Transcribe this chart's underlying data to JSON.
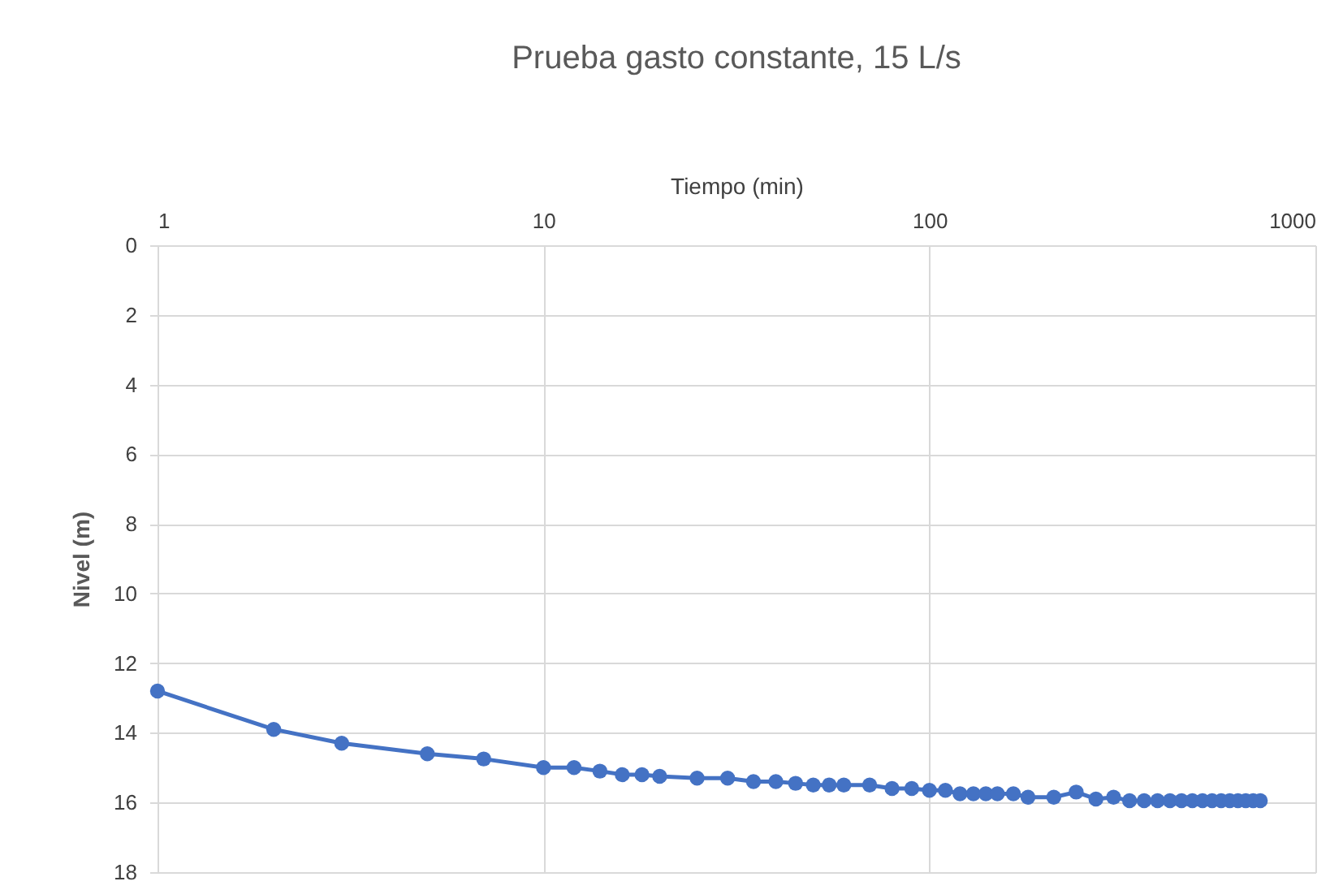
{
  "chart_data": {
    "type": "line",
    "title": "Prueba gasto constante, 15 L/s",
    "xlabel": "Tiempo (min)",
    "ylabel": "Nivel (m)",
    "x": [
      1,
      2,
      3,
      5,
      7,
      10,
      12,
      14,
      16,
      18,
      20,
      25,
      30,
      35,
      40,
      45,
      50,
      55,
      60,
      70,
      80,
      90,
      100,
      110,
      120,
      130,
      140,
      150,
      165,
      180,
      210,
      240,
      270,
      300,
      330,
      360,
      390,
      420,
      450,
      480,
      510,
      540,
      570,
      600,
      630,
      660,
      690,
      720
    ],
    "series": [
      {
        "color": "#4472c4",
        "values": [
          12.8,
          13.9,
          14.3,
          14.6,
          14.75,
          15.0,
          15.0,
          15.1,
          15.2,
          15.2,
          15.25,
          15.3,
          15.3,
          15.4,
          15.4,
          15.45,
          15.5,
          15.5,
          15.5,
          15.5,
          15.6,
          15.6,
          15.65,
          15.65,
          15.75,
          15.75,
          15.75,
          15.75,
          15.75,
          15.85,
          15.85,
          15.7,
          15.9,
          15.85,
          15.95,
          15.95,
          15.95,
          15.95,
          15.95,
          15.95,
          15.95,
          15.95,
          15.95,
          15.95,
          15.95,
          15.95,
          15.95,
          15.95
        ]
      }
    ],
    "xlim": [
      1,
      1000
    ],
    "xticks": [
      1,
      10,
      100,
      1000
    ],
    "ylim": [
      18,
      0
    ],
    "yticks": [
      0,
      2,
      4,
      6,
      8,
      10,
      12,
      14,
      16,
      18
    ],
    "log": "x",
    "grid": true,
    "marker": "circle",
    "line_style": "solid"
  }
}
